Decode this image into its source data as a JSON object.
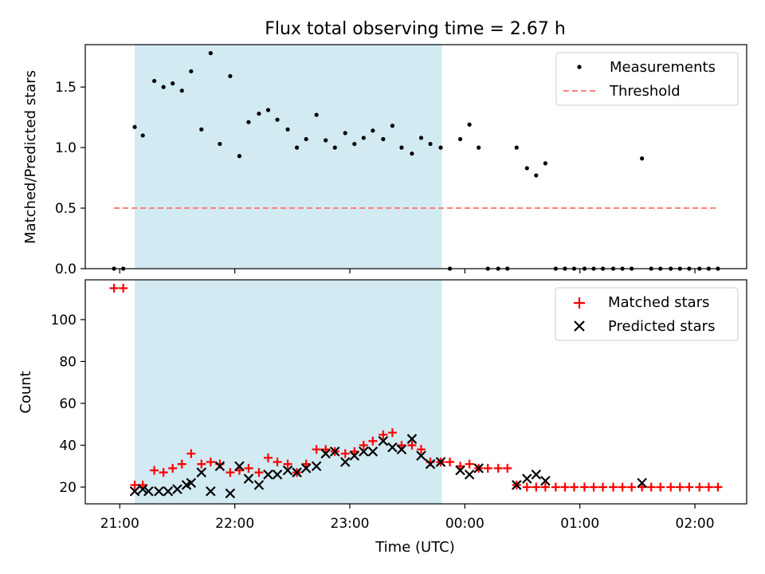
{
  "title": "Flux total observing time = 2.67 h",
  "xlabel": "Time (UTC)",
  "x_tick_labels": [
    "21:00",
    "22:00",
    "23:00",
    "00:00",
    "01:00",
    "02:00"
  ],
  "chart_data": [
    {
      "type": "scatter",
      "title": "Flux total observing time = 2.67 h",
      "xlabel": "",
      "ylabel": "Matched/Predicted stars",
      "x_unit": "hours after 21:00 UTC",
      "x_ticks": [
        0,
        1,
        2,
        3,
        4,
        5
      ],
      "x_tick_labels": [
        "21:00",
        "22:00",
        "23:00",
        "00:00",
        "01:00",
        "02:00"
      ],
      "xlim": [
        -0.3,
        5.45
      ],
      "ylim": [
        0,
        1.85
      ],
      "y_ticks": [
        0.0,
        0.5,
        1.0,
        1.5
      ],
      "y_tick_labels": [
        "0.0",
        "0.5",
        "1.0",
        "1.5"
      ],
      "shaded_region": {
        "x_start": 0.13,
        "x_end": 2.8,
        "color": "#add8e6"
      },
      "legend_position": "top-right",
      "series": [
        {
          "name": "Measurements",
          "style": "dots",
          "color": "#000000",
          "points": [
            [
              -0.05,
              0.0
            ],
            [
              0.03,
              0.0
            ],
            [
              0.13,
              1.17
            ],
            [
              0.2,
              1.1
            ],
            [
              0.3,
              1.55
            ],
            [
              0.38,
              1.5
            ],
            [
              0.46,
              1.53
            ],
            [
              0.54,
              1.47
            ],
            [
              0.62,
              1.63
            ],
            [
              0.71,
              1.15
            ],
            [
              0.79,
              1.78
            ],
            [
              0.87,
              1.03
            ],
            [
              0.96,
              1.59
            ],
            [
              1.04,
              0.93
            ],
            [
              1.12,
              1.21
            ],
            [
              1.21,
              1.28
            ],
            [
              1.29,
              1.31
            ],
            [
              1.37,
              1.23
            ],
            [
              1.46,
              1.15
            ],
            [
              1.54,
              1.0
            ],
            [
              1.62,
              1.07
            ],
            [
              1.71,
              1.27
            ],
            [
              1.79,
              1.06
            ],
            [
              1.87,
              1.0
            ],
            [
              1.96,
              1.12
            ],
            [
              2.04,
              1.03
            ],
            [
              2.12,
              1.08
            ],
            [
              2.2,
              1.14
            ],
            [
              2.29,
              1.07
            ],
            [
              2.37,
              1.18
            ],
            [
              2.45,
              1.0
            ],
            [
              2.54,
              0.95
            ],
            [
              2.62,
              1.08
            ],
            [
              2.7,
              1.03
            ],
            [
              2.79,
              1.0
            ],
            [
              2.87,
              0.0
            ],
            [
              2.96,
              1.07
            ],
            [
              3.04,
              1.19
            ],
            [
              3.12,
              1.0
            ],
            [
              3.2,
              0.0
            ],
            [
              3.29,
              0.0
            ],
            [
              3.37,
              0.0
            ],
            [
              3.45,
              1.0
            ],
            [
              3.54,
              0.83
            ],
            [
              3.62,
              0.77
            ],
            [
              3.7,
              0.87
            ],
            [
              3.79,
              0.0
            ],
            [
              3.87,
              0.0
            ],
            [
              3.95,
              0.0
            ],
            [
              4.04,
              0.0
            ],
            [
              4.12,
              0.0
            ],
            [
              4.2,
              0.0
            ],
            [
              4.29,
              0.0
            ],
            [
              4.37,
              0.0
            ],
            [
              4.45,
              0.0
            ],
            [
              4.54,
              0.91
            ],
            [
              4.62,
              0.0
            ],
            [
              4.7,
              0.0
            ],
            [
              4.79,
              0.0
            ],
            [
              4.87,
              0.0
            ],
            [
              4.95,
              0.0
            ],
            [
              5.04,
              0.0
            ],
            [
              5.12,
              0.0
            ],
            [
              5.2,
              0.0
            ]
          ]
        },
        {
          "name": "Threshold",
          "style": "dashed-line",
          "color": "#ff7f7f",
          "points": [
            [
              -0.05,
              0.5
            ],
            [
              5.2,
              0.5
            ]
          ]
        }
      ]
    },
    {
      "type": "scatter",
      "title": "",
      "xlabel": "Time (UTC)",
      "ylabel": "Count",
      "x_unit": "hours after 21:00 UTC",
      "x_ticks": [
        0,
        1,
        2,
        3,
        4,
        5
      ],
      "x_tick_labels": [
        "21:00",
        "22:00",
        "23:00",
        "00:00",
        "01:00",
        "02:00"
      ],
      "xlim": [
        -0.3,
        5.45
      ],
      "ylim": [
        12,
        119
      ],
      "y_ticks": [
        20,
        40,
        60,
        80,
        100
      ],
      "y_tick_labels": [
        "20",
        "40",
        "60",
        "80",
        "100"
      ],
      "shaded_region": {
        "x_start": 0.13,
        "x_end": 2.8,
        "color": "#add8e6"
      },
      "legend_position": "top-right",
      "series": [
        {
          "name": "Matched stars",
          "style": "plus",
          "color": "#ff0000",
          "points": [
            [
              -0.05,
              115
            ],
            [
              0.03,
              115
            ],
            [
              0.13,
              21
            ],
            [
              0.2,
              21
            ],
            [
              0.3,
              28
            ],
            [
              0.38,
              27
            ],
            [
              0.46,
              29
            ],
            [
              0.54,
              31
            ],
            [
              0.62,
              36
            ],
            [
              0.71,
              31
            ],
            [
              0.79,
              32
            ],
            [
              0.87,
              31
            ],
            [
              0.96,
              27
            ],
            [
              1.04,
              28
            ],
            [
              1.12,
              29
            ],
            [
              1.21,
              27
            ],
            [
              1.29,
              34
            ],
            [
              1.37,
              32
            ],
            [
              1.46,
              31
            ],
            [
              1.54,
              27
            ],
            [
              1.62,
              31
            ],
            [
              1.71,
              38
            ],
            [
              1.79,
              38
            ],
            [
              1.87,
              37
            ],
            [
              1.96,
              36
            ],
            [
              2.04,
              37
            ],
            [
              2.12,
              40
            ],
            [
              2.2,
              42
            ],
            [
              2.29,
              45
            ],
            [
              2.37,
              46
            ],
            [
              2.45,
              40
            ],
            [
              2.54,
              40
            ],
            [
              2.62,
              38
            ],
            [
              2.7,
              32
            ],
            [
              2.79,
              32
            ],
            [
              2.87,
              32
            ],
            [
              2.96,
              30
            ],
            [
              3.04,
              31
            ],
            [
              3.12,
              29
            ],
            [
              3.2,
              29
            ],
            [
              3.29,
              29
            ],
            [
              3.37,
              29
            ],
            [
              3.45,
              21
            ],
            [
              3.54,
              20
            ],
            [
              3.62,
              20
            ],
            [
              3.7,
              20
            ],
            [
              3.79,
              20
            ],
            [
              3.87,
              20
            ],
            [
              3.95,
              20
            ],
            [
              4.04,
              20
            ],
            [
              4.12,
              20
            ],
            [
              4.2,
              20
            ],
            [
              4.29,
              20
            ],
            [
              4.37,
              20
            ],
            [
              4.45,
              20
            ],
            [
              4.54,
              20
            ],
            [
              4.62,
              20
            ],
            [
              4.7,
              20
            ],
            [
              4.79,
              20
            ],
            [
              4.87,
              20
            ],
            [
              4.95,
              20
            ],
            [
              5.04,
              20
            ],
            [
              5.12,
              20
            ],
            [
              5.2,
              20
            ]
          ]
        },
        {
          "name": "Predicted stars",
          "style": "x",
          "color": "#000000",
          "points": [
            [
              0.13,
              18
            ],
            [
              0.2,
              19
            ],
            [
              0.25,
              18
            ],
            [
              0.34,
              18
            ],
            [
              0.42,
              18
            ],
            [
              0.5,
              19
            ],
            [
              0.58,
              21
            ],
            [
              0.62,
              22
            ],
            [
              0.71,
              27
            ],
            [
              0.79,
              18
            ],
            [
              0.87,
              30
            ],
            [
              0.96,
              17
            ],
            [
              1.04,
              30
            ],
            [
              1.12,
              24
            ],
            [
              1.21,
              21
            ],
            [
              1.29,
              26
            ],
            [
              1.37,
              26
            ],
            [
              1.46,
              28
            ],
            [
              1.54,
              27
            ],
            [
              1.62,
              29
            ],
            [
              1.71,
              30
            ],
            [
              1.79,
              36
            ],
            [
              1.87,
              37
            ],
            [
              1.96,
              32
            ],
            [
              2.04,
              35
            ],
            [
              2.12,
              37
            ],
            [
              2.2,
              37
            ],
            [
              2.29,
              42
            ],
            [
              2.37,
              39
            ],
            [
              2.45,
              38
            ],
            [
              2.54,
              43
            ],
            [
              2.62,
              35
            ],
            [
              2.7,
              31
            ],
            [
              2.79,
              32
            ],
            [
              2.96,
              28
            ],
            [
              3.04,
              26
            ],
            [
              3.12,
              29
            ],
            [
              3.45,
              21
            ],
            [
              3.54,
              24
            ],
            [
              3.62,
              26
            ],
            [
              3.7,
              23
            ],
            [
              4.54,
              22
            ]
          ]
        }
      ]
    }
  ]
}
